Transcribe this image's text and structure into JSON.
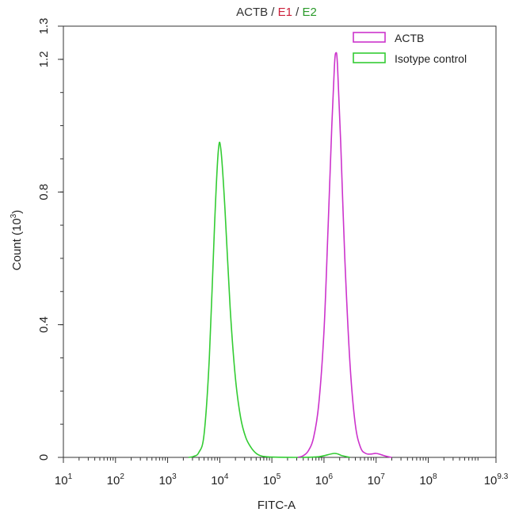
{
  "chart_data": {
    "type": "line",
    "title_parts": [
      {
        "text": "ACTB",
        "color": "#333333"
      },
      {
        "text": " / ",
        "color": "#333333"
      },
      {
        "text": "E1",
        "color": "#cc1f3a"
      },
      {
        "text": " / ",
        "color": "#333333"
      },
      {
        "text": "E2",
        "color": "#2a9a2a"
      }
    ],
    "xlabel": "FITC-A",
    "ylabel": "Count (10",
    "ylabel_sup": "3",
    "ylabel_close": ")",
    "x_scale": "log10",
    "xlim": [
      1,
      9.3
    ],
    "ylim": [
      0,
      1.3
    ],
    "x_ticks": [
      {
        "base": "10",
        "exp": "1"
      },
      {
        "base": "10",
        "exp": "2"
      },
      {
        "base": "10",
        "exp": "3"
      },
      {
        "base": "10",
        "exp": "4"
      },
      {
        "base": "10",
        "exp": "5"
      },
      {
        "base": "10",
        "exp": "6"
      },
      {
        "base": "10",
        "exp": "7"
      },
      {
        "base": "10",
        "exp": "8"
      },
      {
        "base": "10",
        "exp": "9.3"
      }
    ],
    "y_ticks": [
      "0",
      "0.4",
      "0.8",
      "1.2",
      "1.3"
    ],
    "legend_position": "top-right",
    "series": [
      {
        "name": "ACTB",
        "color": "#cc33cc",
        "points": [
          [
            5.5,
            0
          ],
          [
            5.6,
            0.005
          ],
          [
            5.7,
            0.02
          ],
          [
            5.8,
            0.06
          ],
          [
            5.9,
            0.16
          ],
          [
            6.0,
            0.38
          ],
          [
            6.08,
            0.7
          ],
          [
            6.15,
            1.0
          ],
          [
            6.2,
            1.18
          ],
          [
            6.23,
            1.22
          ],
          [
            6.26,
            1.18
          ],
          [
            6.32,
            0.95
          ],
          [
            6.4,
            0.6
          ],
          [
            6.5,
            0.28
          ],
          [
            6.6,
            0.1
          ],
          [
            6.7,
            0.03
          ],
          [
            6.8,
            0.012
          ],
          [
            6.9,
            0.01
          ],
          [
            7.0,
            0.012
          ],
          [
            7.1,
            0.008
          ],
          [
            7.2,
            0.003
          ],
          [
            7.3,
            0
          ]
        ]
      },
      {
        "name": "Isotype control",
        "color": "#33cc33",
        "points": [
          [
            3.4,
            0
          ],
          [
            3.5,
            0.003
          ],
          [
            3.6,
            0.015
          ],
          [
            3.7,
            0.07
          ],
          [
            3.8,
            0.3
          ],
          [
            3.9,
            0.7
          ],
          [
            3.97,
            0.92
          ],
          [
            4.02,
            0.93
          ],
          [
            4.1,
            0.75
          ],
          [
            4.2,
            0.45
          ],
          [
            4.3,
            0.24
          ],
          [
            4.4,
            0.12
          ],
          [
            4.5,
            0.06
          ],
          [
            4.6,
            0.03
          ],
          [
            4.7,
            0.012
          ],
          [
            4.8,
            0.004
          ],
          [
            4.9,
            0.002
          ],
          [
            5.0,
            0.001
          ],
          [
            5.5,
            0
          ],
          [
            5.9,
            0.002
          ],
          [
            6.2,
            0.012
          ],
          [
            6.35,
            0.005
          ],
          [
            6.5,
            0
          ]
        ]
      }
    ]
  }
}
